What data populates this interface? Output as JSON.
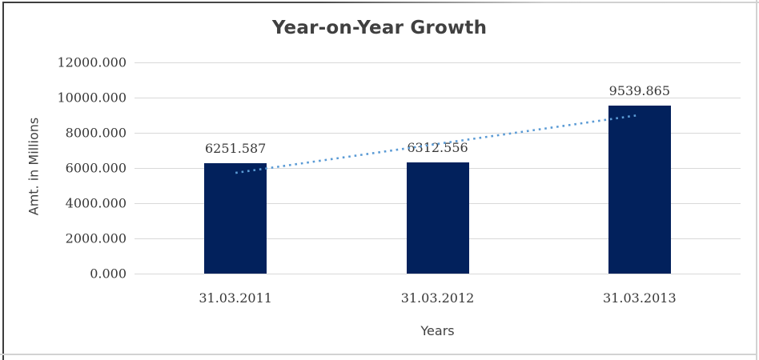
{
  "chart_data": {
    "type": "bar",
    "title": "Year-on-Year Growth",
    "xlabel": "Years",
    "ylabel": "Amt. in Millions",
    "categories": [
      "31.03.2011",
      "31.03.2012",
      "31.03.2013"
    ],
    "values": [
      6251.587,
      6312.556,
      9539.865
    ],
    "data_labels": [
      "6251.587",
      "6312.556",
      "9539.865"
    ],
    "ylim": [
      0,
      12000
    ],
    "ytick_step": 2000,
    "ytick_labels": [
      "0.000",
      "2000.000",
      "4000.000",
      "6000.000",
      "8000.000",
      "10000.000",
      "12000.000"
    ],
    "grid": true,
    "legend": "none",
    "bar_color": "#02215C",
    "gridline_color": "#D9D9D9",
    "trendline": {
      "type": "linear",
      "style": "dotted",
      "color": "#5B9BD5"
    }
  }
}
